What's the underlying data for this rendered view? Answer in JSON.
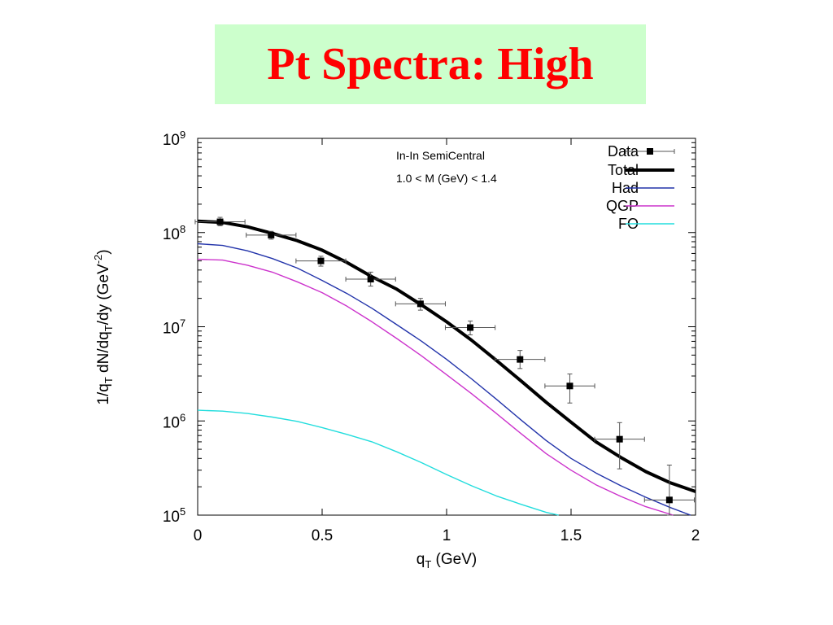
{
  "slide": {
    "title": "Pt Spectra: High",
    "title_color": "#ff0000",
    "title_background": "#ccffcc"
  },
  "chart_data": {
    "type": "line",
    "xlabel_main": "q",
    "xlabel_sub": "T",
    "xlabel_tail": " (GeV)",
    "ylabel_parts": {
      "a": "1/q",
      "a_sub": "T",
      "b": " dN/dq",
      "b_sub": "T",
      "c": "/dy (GeV",
      "c_sup": "-2",
      "d": ")"
    },
    "xlim": [
      0,
      2
    ],
    "ylim": [
      100000,
      1000000000
    ],
    "yscale": "log",
    "x_ticks": [
      {
        "value": 0,
        "label": "0"
      },
      {
        "value": 0.5,
        "label": "0.5"
      },
      {
        "value": 1,
        "label": "1"
      },
      {
        "value": 1.5,
        "label": "1.5"
      },
      {
        "value": 2,
        "label": "2"
      }
    ],
    "y_ticks": [
      {
        "value": 100000,
        "base": "10",
        "exp": "5"
      },
      {
        "value": 1000000,
        "base": "10",
        "exp": "6"
      },
      {
        "value": 10000000,
        "base": "10",
        "exp": "7"
      },
      {
        "value": 100000000,
        "base": "10",
        "exp": "8"
      },
      {
        "value": 1000000000,
        "base": "10",
        "exp": "9"
      }
    ],
    "annotations": [
      "In-In SemiCentral",
      "1.0 < M (GeV) < 1.4"
    ],
    "legend_position": "top-right",
    "series": [
      {
        "name": "Data",
        "kind": "points",
        "color": "#000000",
        "points": [
          {
            "x": 0.09,
            "y": 130000000,
            "xerr": 0.1,
            "ylo": 118000000,
            "yhi": 145000000
          },
          {
            "x": 0.295,
            "y": 94000000,
            "xerr": 0.1,
            "ylo": 85000000,
            "yhi": 103000000
          },
          {
            "x": 0.495,
            "y": 50000000,
            "xerr": 0.1,
            "ylo": 44000000,
            "yhi": 56000000
          },
          {
            "x": 0.695,
            "y": 32000000,
            "xerr": 0.1,
            "ylo": 27000000,
            "yhi": 38000000
          },
          {
            "x": 0.895,
            "y": 17500000,
            "xerr": 0.1,
            "ylo": 15000000,
            "yhi": 20000000
          },
          {
            "x": 1.095,
            "y": 9800000,
            "xerr": 0.1,
            "ylo": 8200000,
            "yhi": 11500000
          },
          {
            "x": 1.295,
            "y": 4500000,
            "xerr": 0.1,
            "ylo": 3600000,
            "yhi": 5600000
          },
          {
            "x": 1.495,
            "y": 2350000,
            "xerr": 0.1,
            "ylo": 1550000,
            "yhi": 3150000
          },
          {
            "x": 1.695,
            "y": 640000,
            "xerr": 0.1,
            "ylo": 310000,
            "yhi": 960000
          },
          {
            "x": 1.895,
            "y": 145000,
            "xerr": 0.1,
            "ylo": 100000,
            "yhi": 340000
          }
        ]
      },
      {
        "name": "Total",
        "kind": "line",
        "color": "#000000",
        "width": 4,
        "x": [
          0,
          0.1,
          0.2,
          0.3,
          0.4,
          0.5,
          0.6,
          0.7,
          0.8,
          0.9,
          1.0,
          1.1,
          1.2,
          1.3,
          1.4,
          1.5,
          1.6,
          1.7,
          1.8,
          1.9,
          2.0
        ],
        "y": [
          132000000,
          128000000,
          115000000,
          98000000,
          82000000,
          65000000,
          48000000,
          34000000,
          25000000,
          17000000,
          11300000,
          7200000,
          4400000,
          2650000,
          1580000,
          970000,
          600000,
          410000,
          290000,
          220000,
          178000
        ]
      },
      {
        "name": "Had",
        "kind": "line",
        "color": "#2233aa",
        "width": 1.4,
        "x": [
          0,
          0.1,
          0.2,
          0.3,
          0.4,
          0.5,
          0.6,
          0.7,
          0.8,
          0.9,
          1.0,
          1.1,
          1.2,
          1.3,
          1.4,
          1.5,
          1.6,
          1.7,
          1.8,
          1.9,
          1.98
        ],
        "y": [
          76000000,
          73000000,
          64000000,
          53000000,
          42000000,
          31000000,
          22500000,
          15700000,
          10500000,
          7000000,
          4500000,
          2800000,
          1700000,
          1020000,
          620000,
          400000,
          280000,
          205000,
          155000,
          120000,
          100000
        ]
      },
      {
        "name": "QGP",
        "kind": "line",
        "color": "#cc33cc",
        "width": 1.4,
        "x": [
          0,
          0.1,
          0.2,
          0.3,
          0.4,
          0.5,
          0.6,
          0.7,
          0.8,
          0.9,
          1.0,
          1.1,
          1.2,
          1.3,
          1.4,
          1.5,
          1.6,
          1.7,
          1.8,
          1.91
        ],
        "y": [
          52000000,
          51000000,
          45000000,
          38000000,
          30000000,
          23000000,
          16500000,
          11300000,
          7500000,
          4900000,
          3100000,
          1950000,
          1200000,
          730000,
          450000,
          300000,
          210000,
          158000,
          123000,
          100000
        ]
      },
      {
        "name": "FO",
        "kind": "line",
        "color": "#22dddd",
        "width": 1.4,
        "x": [
          0,
          0.1,
          0.2,
          0.3,
          0.4,
          0.5,
          0.6,
          0.7,
          0.8,
          0.9,
          1.0,
          1.1,
          1.2,
          1.3,
          1.4,
          1.45
        ],
        "y": [
          1300000,
          1270000,
          1200000,
          1100000,
          990000,
          850000,
          720000,
          600000,
          470000,
          360000,
          270000,
          205000,
          160000,
          130000,
          107000,
          100000
        ]
      }
    ]
  }
}
